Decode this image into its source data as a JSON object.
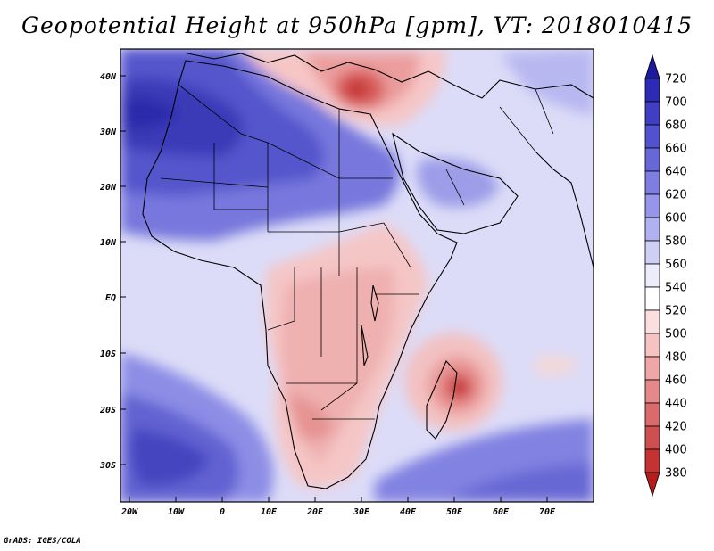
{
  "title": "Geopotential Height at 950hPa [gpm], VT: 2018010415",
  "credit": "GrADS: IGES/COLA",
  "lat_labels": [
    "40N",
    "30N",
    "20N",
    "10N",
    "EQ",
    "10S",
    "20S",
    "30S"
  ],
  "lon_labels": [
    "20W",
    "10W",
    "0",
    "10E",
    "20E",
    "30E",
    "40E",
    "50E",
    "60E",
    "70E"
  ],
  "colorbar": {
    "labels": [
      "720",
      "700",
      "680",
      "660",
      "640",
      "620",
      "600",
      "580",
      "560",
      "540",
      "520",
      "500",
      "480",
      "460",
      "440",
      "420",
      "400",
      "380"
    ],
    "colors": [
      "#1e1aa0",
      "#2d2bb5",
      "#3f3ec4",
      "#5252d0",
      "#6767da",
      "#7d7de2",
      "#9595ea",
      "#b1b1f1",
      "#cfcff6",
      "#ececfb",
      "#ffffff",
      "#fbdede",
      "#f6c2c2",
      "#eea6a6",
      "#e48989",
      "#d96b6b",
      "#ce4f4f",
      "#c43232",
      "#b71c1c"
    ]
  }
}
